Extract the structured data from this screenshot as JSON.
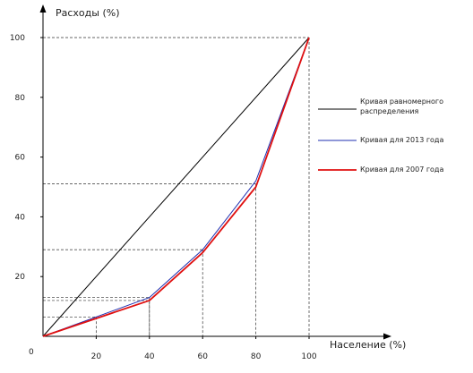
{
  "chart_data": {
    "type": "line",
    "title": "",
    "xlabel": "Население (%)",
    "ylabel": "Расходы (%)",
    "xlim": [
      0,
      100
    ],
    "ylim": [
      0,
      100
    ],
    "x_ticks": [
      "20",
      "40",
      "60",
      "80",
      "100"
    ],
    "y_ticks": [
      "20",
      "40",
      "60",
      "80",
      "100"
    ],
    "origin_label": "0",
    "grid": false,
    "legend_position": "right",
    "series": [
      {
        "name": "Кривая равномерного распределения",
        "color": "#000000",
        "x": [
          0,
          100
        ],
        "y": [
          0,
          100
        ]
      },
      {
        "name": "Кривая для 2013 года",
        "color": "#1f2fb0",
        "x": [
          0,
          20,
          40,
          60,
          80,
          100
        ],
        "y": [
          0,
          6.5,
          13,
          29,
          52,
          100
        ]
      },
      {
        "name": "Кривая для 2007 года",
        "color": "#e01010",
        "x": [
          0,
          20,
          40,
          60,
          80,
          100
        ],
        "y": [
          0,
          6,
          12,
          28,
          50,
          100
        ]
      }
    ],
    "reference_lines": [
      {
        "x": 20,
        "y": 6.5
      },
      {
        "x": 40,
        "y": 13
      },
      {
        "x": 40,
        "y": 12
      },
      {
        "x": 60,
        "y": 29
      },
      {
        "x": 80,
        "y": 51
      },
      {
        "x": 100,
        "y": 100
      }
    ]
  }
}
